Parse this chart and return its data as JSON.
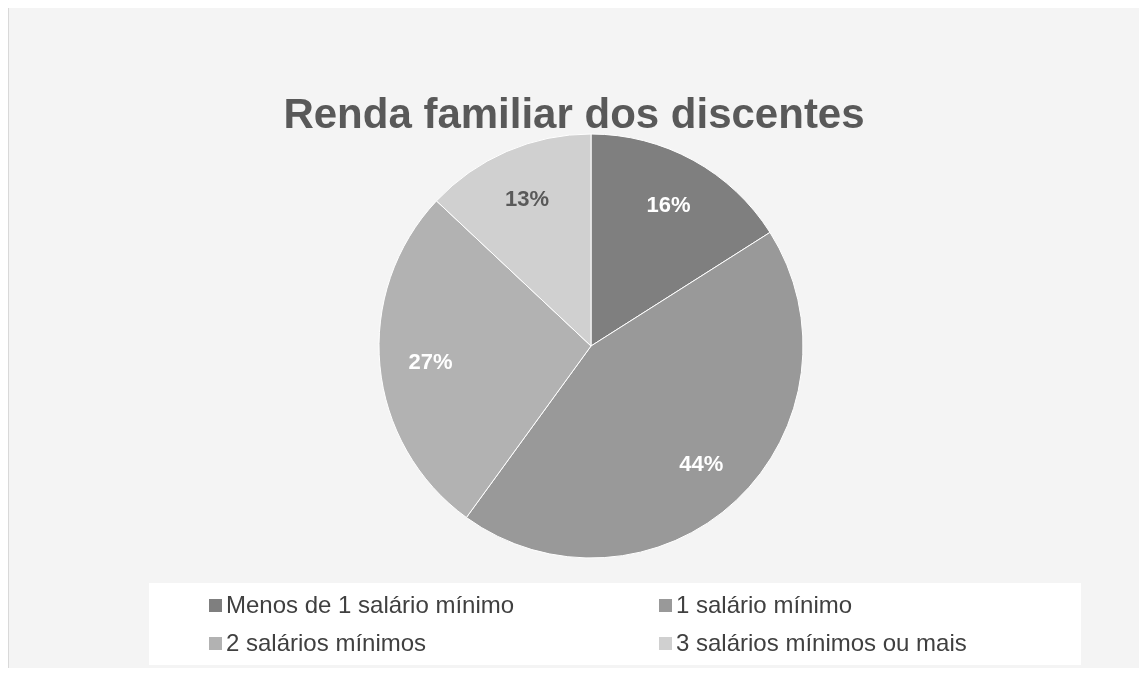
{
  "chart_data": {
    "type": "pie",
    "title": "Renda familiar dos discentes",
    "categories": [
      "Menos de 1 salário mínimo",
      "1 salário mínimo",
      "2 salários mínimos",
      "3 salários mínimos ou mais"
    ],
    "values": [
      16,
      44,
      27,
      13
    ],
    "colors": [
      "#7f7f7f",
      "#999999",
      "#b2b2b2",
      "#d0d0d0"
    ],
    "value_labels": [
      "16%",
      "44%",
      "27%",
      "13%"
    ],
    "legend": "bottom"
  }
}
